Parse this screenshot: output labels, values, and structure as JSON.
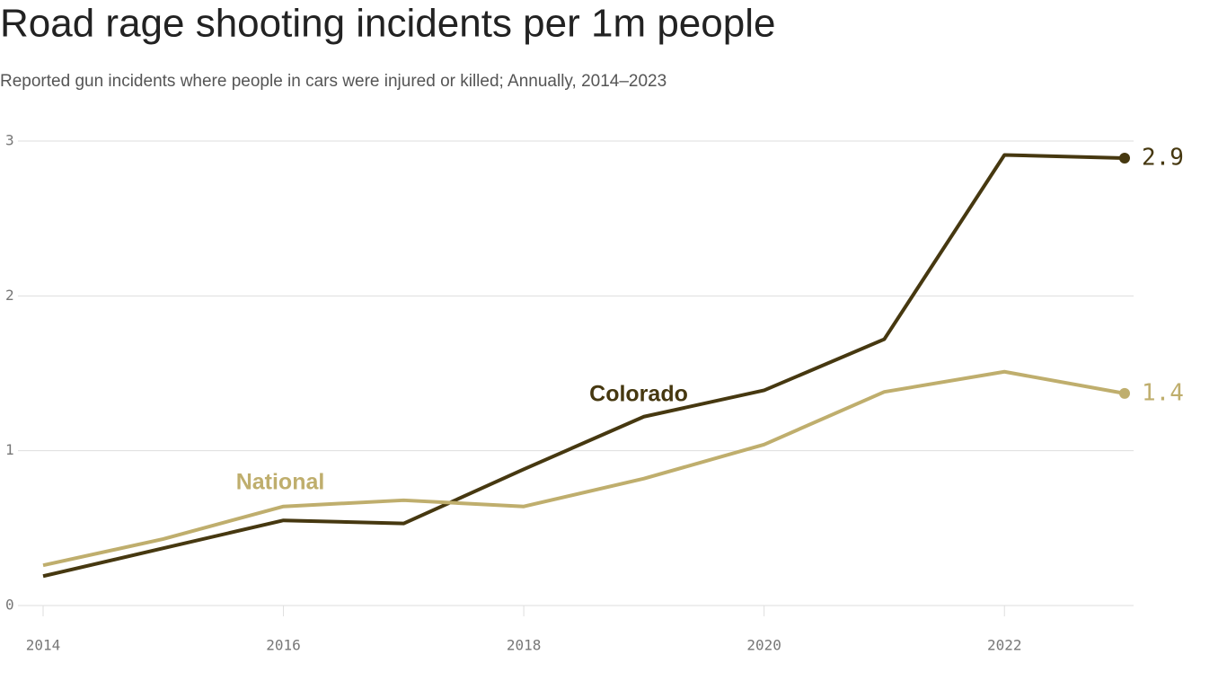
{
  "chart_data": {
    "type": "line",
    "title": "Road rage shooting incidents per 1m people",
    "subtitle": "Reported gun incidents where people in cars were injured or killed; Annually, 2014–2023",
    "x": [
      2014,
      2015,
      2016,
      2017,
      2018,
      2019,
      2020,
      2021,
      2022,
      2023
    ],
    "series": [
      {
        "name": "Colorado",
        "color": "#463810",
        "values": [
          0.19,
          0.37,
          0.55,
          0.53,
          0.88,
          1.22,
          1.39,
          1.72,
          2.91,
          2.89
        ],
        "value_labels": [
          null,
          null,
          null,
          null,
          null,
          null,
          null,
          null,
          null,
          "2.9"
        ]
      },
      {
        "name": "National",
        "color": "#bfae6d",
        "values": [
          0.26,
          0.43,
          0.64,
          0.68,
          0.64,
          0.82,
          1.04,
          1.38,
          1.51,
          1.37
        ],
        "value_labels": [
          null,
          null,
          null,
          null,
          null,
          null,
          null,
          null,
          null,
          "1.4"
        ]
      }
    ],
    "xlim": [
      2014,
      2023
    ],
    "xticks": [
      2014,
      2016,
      2018,
      2020,
      2022
    ],
    "ylim": [
      0,
      3
    ],
    "yticks": [
      0,
      1,
      2,
      3
    ],
    "grid": true
  }
}
